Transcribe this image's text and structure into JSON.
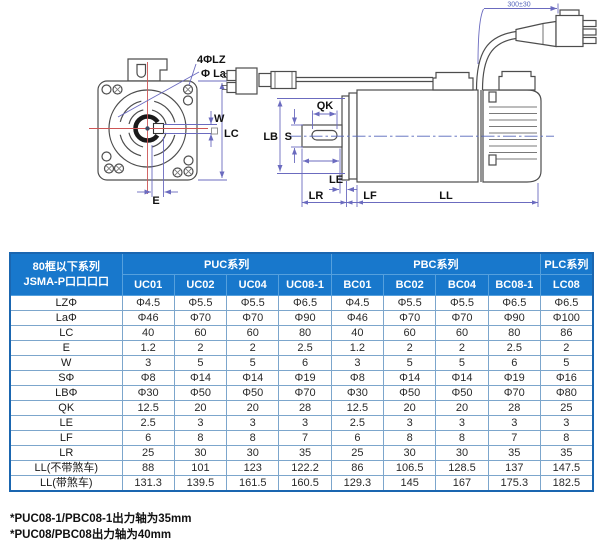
{
  "colors": {
    "header_bg": "#1878cc",
    "table_outer_border": "#1a66b0",
    "grid_line": "#7ca6cc",
    "dimension_line": "#6b6bbf",
    "centerline_red": "#cc5555",
    "drawing_outline": "#4d4d4d"
  },
  "diagram": {
    "front_view": {
      "holes_label": "4ΦLZ",
      "pilot_label": "Φ La",
      "key_width_label": "W",
      "frame_label": "LC",
      "key_offset_label": "E"
    },
    "side_view": {
      "key_length_label": "QK",
      "shaft_dia_label": "S",
      "pilot_dia_label": "LB",
      "le_label": "LE",
      "shaft_ext_label": "LR",
      "lf_label": "LF",
      "body_length_label": "LL",
      "cable_length_label": "300±30"
    }
  },
  "table": {
    "corner": {
      "line1": "80框以下系列",
      "line2": "JSMA-P口口口口"
    },
    "groups": [
      {
        "label": "PUC系列",
        "columns": [
          "UC01",
          "UC02",
          "UC04",
          "UC08-1"
        ]
      },
      {
        "label": "PBC系列",
        "columns": [
          "BC01",
          "BC02",
          "BC04",
          "BC08-1"
        ]
      },
      {
        "label": "PLC系列",
        "columns": [
          "LC08"
        ]
      }
    ],
    "rows": [
      {
        "label": "LZΦ",
        "values": [
          "Φ4.5",
          "Φ5.5",
          "Φ5.5",
          "Φ6.5",
          "Φ4.5",
          "Φ5.5",
          "Φ5.5",
          "Φ6.5",
          "Φ6.5"
        ]
      },
      {
        "label": "LaΦ",
        "values": [
          "Φ46",
          "Φ70",
          "Φ70",
          "Φ90",
          "Φ46",
          "Φ70",
          "Φ70",
          "Φ90",
          "Φ100"
        ]
      },
      {
        "label": "LC",
        "values": [
          "40",
          "60",
          "60",
          "80",
          "40",
          "60",
          "60",
          "80",
          "86"
        ]
      },
      {
        "label": "E",
        "values": [
          "1.2",
          "2",
          "2",
          "2.5",
          "1.2",
          "2",
          "2",
          "2.5",
          "2"
        ]
      },
      {
        "label": "W",
        "values": [
          "3",
          "5",
          "5",
          "6",
          "3",
          "5",
          "5",
          "6",
          "5"
        ]
      },
      {
        "label": "SΦ",
        "values": [
          "Φ8",
          "Φ14",
          "Φ14",
          "Φ19",
          "Φ8",
          "Φ14",
          "Φ14",
          "Φ19",
          "Φ16"
        ]
      },
      {
        "label": "LBΦ",
        "values": [
          "Φ30",
          "Φ50",
          "Φ50",
          "Φ70",
          "Φ30",
          "Φ50",
          "Φ50",
          "Φ70",
          "Φ80"
        ]
      },
      {
        "label": "QK",
        "values": [
          "12.5",
          "20",
          "20",
          "28",
          "12.5",
          "20",
          "20",
          "28",
          "25"
        ]
      },
      {
        "label": "LE",
        "values": [
          "2.5",
          "3",
          "3",
          "3",
          "2.5",
          "3",
          "3",
          "3",
          "3"
        ]
      },
      {
        "label": "LF",
        "values": [
          "6",
          "8",
          "8",
          "7",
          "6",
          "8",
          "8",
          "7",
          "8"
        ]
      },
      {
        "label": "LR",
        "values": [
          "25",
          "30",
          "30",
          "35",
          "25",
          "30",
          "30",
          "35",
          "35"
        ]
      },
      {
        "label": "LL(不带煞车)",
        "values": [
          "88",
          "101",
          "123",
          "122.2",
          "86",
          "106.5",
          "128.5",
          "137",
          "147.5"
        ]
      },
      {
        "label": "LL(带煞车)",
        "values": [
          "131.3",
          "139.5",
          "161.5",
          "160.5",
          "129.3",
          "145",
          "167",
          "175.3",
          "182.5"
        ]
      }
    ]
  },
  "footnotes": [
    "*PUC08-1/PBC08-1出力轴为35mm",
    "*PUC08/PBC08出力轴为40mm"
  ]
}
